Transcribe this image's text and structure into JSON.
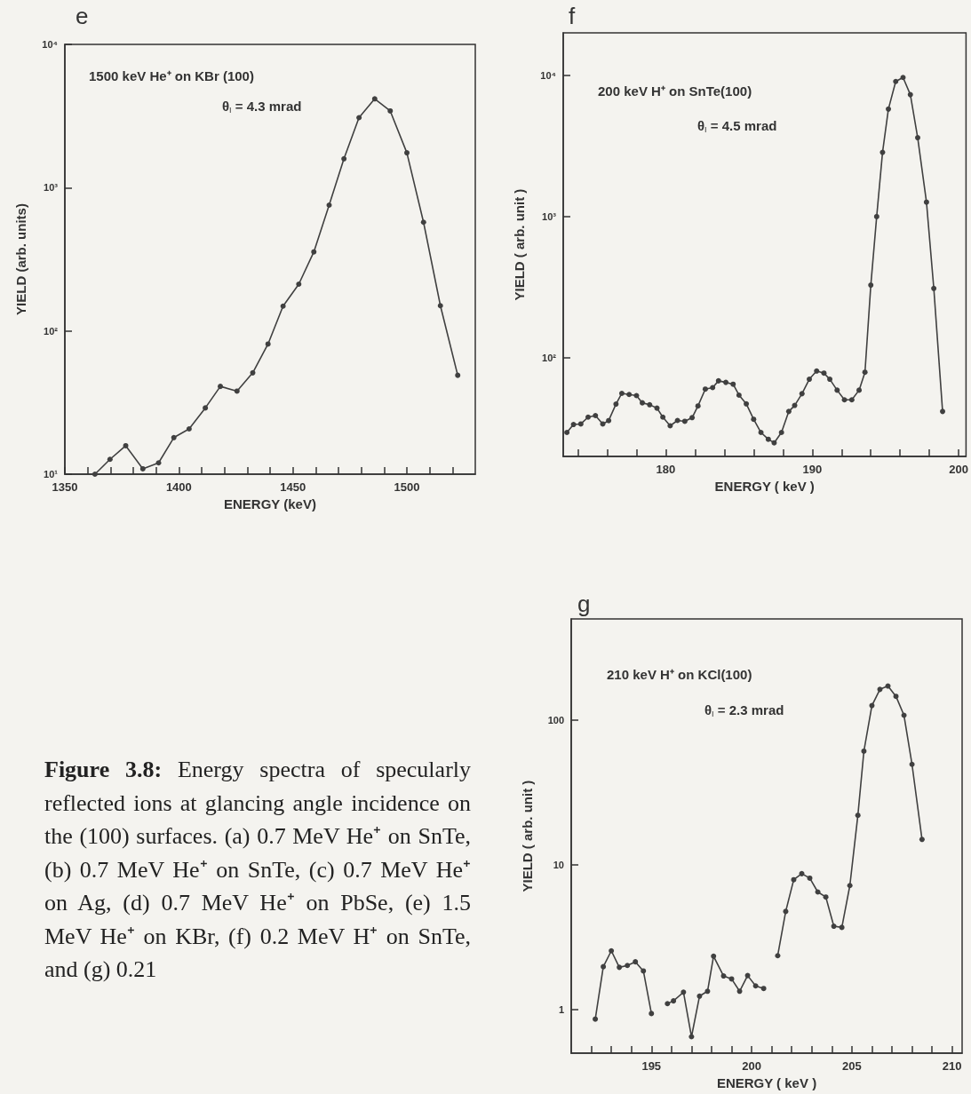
{
  "chart_data": [
    {
      "type": "line",
      "title": "e",
      "xlabel": "ENERGY (keV)",
      "ylabel": "YIELD (arb. units)",
      "annotations": [
        "1500 keV He⁺ on KBr (100)",
        "θ$_{I}$ = 4.3 mrad"
      ],
      "log": "y",
      "marker": "circle",
      "line_style": "solid",
      "color": "#404040",
      "x": [
        1363.2,
        1369.8,
        1376.7,
        1384.2,
        1391.1,
        1397.8,
        1404.5,
        1411.6,
        1418.2,
        1425.5,
        1432.4,
        1439.1,
        1445.7,
        1452.6,
        1459.2,
        1465.9,
        1472.4,
        1479,
        1485.9,
        1492.7,
        1500,
        1507.3,
        1514.7,
        1522.3
      ],
      "values": [
        10,
        12.7,
        15.8,
        10.9,
        12,
        18,
        20.7,
        29,
        41,
        38,
        51,
        81,
        149,
        212,
        356,
        755,
        1590,
        3080,
        4170,
        3430,
        1750,
        574,
        150,
        49
      ],
      "xlim": [
        1350,
        1530
      ],
      "ylim": [
        10,
        10000
      ],
      "xticks": [
        1350,
        {
          "value": 1360,
          "label": null
        },
        {
          "value": 1370,
          "label": null
        },
        {
          "value": 1380,
          "label": null
        },
        {
          "value": 1390,
          "label": null
        },
        1400,
        {
          "value": 1410,
          "label": null
        },
        {
          "value": 1420,
          "label": null
        },
        {
          "value": 1430,
          "label": null
        },
        {
          "value": 1440,
          "label": null
        },
        1450,
        {
          "value": 1460,
          "label": null
        },
        {
          "value": 1470,
          "label": null
        },
        {
          "value": 1480,
          "label": null
        },
        {
          "value": 1490,
          "label": null
        },
        1500,
        {
          "value": 1510,
          "label": null
        },
        {
          "value": 1520,
          "label": null
        }
      ],
      "yticks": [
        {
          "value": 10,
          "label": "10¹"
        },
        {
          "value": 100,
          "label": "10²"
        },
        {
          "value": 1000,
          "label": "10³"
        },
        {
          "value": 10000,
          "label": "10⁴"
        }
      ]
    },
    {
      "type": "line",
      "title": "f",
      "xlabel": "ENERGY ( keV )",
      "ylabel": "YIELD ( arb. unit )",
      "annotations": [
        "200 keV H⁺ on SnTe(100)",
        "θ$_{I}$ = 4.5 mrad"
      ],
      "log": "y",
      "marker": "circle",
      "line_style": "solid",
      "color": "#404040",
      "x": [
        173.25,
        173.7,
        174.2,
        174.7,
        175.2,
        175.7,
        176.1,
        176.6,
        177,
        177.5,
        178,
        178.4,
        178.9,
        179.4,
        179.8,
        180.3,
        180.8,
        181.3,
        181.8,
        182.2,
        182.7,
        183.2,
        183.6,
        184.1,
        184.6,
        185,
        185.5,
        186,
        186.5,
        187,
        187.4,
        187.9,
        188.4,
        188.8,
        189.3,
        189.8,
        190.3,
        190.8,
        191.2,
        191.7,
        192.2,
        192.7,
        193.2,
        193.6,
        194,
        194.4,
        194.8,
        195.2,
        195.7,
        196.2,
        196.7,
        197.2,
        197.8,
        198.3,
        198.9
      ],
      "values": [
        29.6,
        33.7,
        34,
        38,
        39,
        34,
        35.9,
        47,
        56,
        55,
        54,
        48,
        46.5,
        44,
        38,
        33,
        36,
        35.5,
        37.7,
        45.6,
        60,
        61.5,
        68.7,
        67,
        65,
        54.4,
        47.2,
        36.7,
        29.6,
        26.5,
        25,
        29.6,
        41.7,
        46,
        55.7,
        70.5,
        80.6,
        77.9,
        70.5,
        59,
        50.4,
        50.4,
        59,
        79,
        327,
        1000,
        2850,
        5770,
        9050,
        9660,
        7300,
        3620,
        1265,
        310,
        41.7
      ],
      "xlim": [
        173,
        200.5
      ],
      "ylim": [
        20,
        20000
      ],
      "xticks": [
        {
          "value": 174,
          "label": null
        },
        {
          "value": 176,
          "label": null
        },
        {
          "value": 178,
          "label": null
        },
        180,
        {
          "value": 182,
          "label": null
        },
        {
          "value": 184,
          "label": null
        },
        {
          "value": 186,
          "label": null
        },
        {
          "value": 188,
          "label": null
        },
        190,
        {
          "value": 192,
          "label": null
        },
        {
          "value": 194,
          "label": null
        },
        {
          "value": 196,
          "label": null
        },
        {
          "value": 198,
          "label": null
        },
        200
      ],
      "yticks": [
        {
          "value": 100,
          "label": "10²"
        },
        {
          "value": 1000,
          "label": "10³"
        },
        {
          "value": 10000,
          "label": "10⁴"
        }
      ]
    },
    {
      "type": "other",
      "annotations": [
        "Figure 3.8:",
        "Energy spectra of specularly reflected ions at glancing angle incidence on the (100) surfaces. (a) 0.7 MeV He⁺ on SnTe, (b) 0.7 MeV He⁺ on SnTe, (c) 0.7 MeV He⁺ on Ag, (d) 0.7 MeV He⁺ on PbSe, (e) 1.5 MeV He⁺ on KBr, (f) 0.2 MeV H⁺ on SnTe, and (g) 0.21"
      ]
    },
    {
      "type": "line",
      "title": "g",
      "xlabel": "ENERGY ( keV )",
      "ylabel": "YIELD ( arb. unit )",
      "annotations": [
        "210 keV H⁺ on KCl(100)",
        "θ$_{I}$ = 2.3 mrad"
      ],
      "log": "y",
      "marker": "circle",
      "line_style": "solid",
      "color": "#404040",
      "x": [
        192.2,
        192.6,
        193,
        193.4,
        193.8,
        194.2,
        194.6,
        195,
        195.4,
        195.8,
        196.1,
        196.6,
        197,
        197.4,
        197.8,
        198.1,
        198.6,
        199,
        199.4,
        199.8,
        200.2,
        200.6,
        201,
        201.3,
        201.7,
        202.1,
        202.5,
        202.9,
        203.3,
        203.7,
        204.1,
        204.5,
        204.9,
        205.3,
        205.6,
        206,
        206.4,
        206.8,
        207.2,
        207.6,
        208,
        208.5
      ],
      "values": [
        0.86,
        1.98,
        2.55,
        1.96,
        2.02,
        2.14,
        1.85,
        0.94,
        null,
        1.1,
        1.15,
        1.32,
        0.65,
        1.24,
        1.34,
        2.34,
        1.71,
        1.63,
        1.34,
        1.72,
        1.46,
        1.4,
        null,
        2.36,
        4.77,
        7.9,
        8.7,
        8.1,
        6.5,
        6,
        3.77,
        3.7,
        7.2,
        22,
        61,
        126,
        163,
        172,
        146,
        108,
        49.5,
        15
      ],
      "xlim": [
        191,
        210.5
      ],
      "ylim": [
        0.5,
        500
      ],
      "xticks": [
        {
          "value": 192,
          "label": null
        },
        {
          "value": 193,
          "label": null
        },
        {
          "value": 194,
          "label": null
        },
        195,
        {
          "value": 196,
          "label": null
        },
        {
          "value": 197,
          "label": null
        },
        {
          "value": 198,
          "label": null
        },
        {
          "value": 199,
          "label": null
        },
        200,
        {
          "value": 201,
          "label": null
        },
        {
          "value": 202,
          "label": null
        },
        {
          "value": 203,
          "label": null
        },
        {
          "value": 204,
          "label": null
        },
        205,
        {
          "value": 206,
          "label": null
        },
        {
          "value": 207,
          "label": null
        },
        {
          "value": 208,
          "label": null
        },
        {
          "value": 209,
          "label": null
        },
        210
      ],
      "yticks": [
        1,
        10,
        100
      ]
    }
  ]
}
